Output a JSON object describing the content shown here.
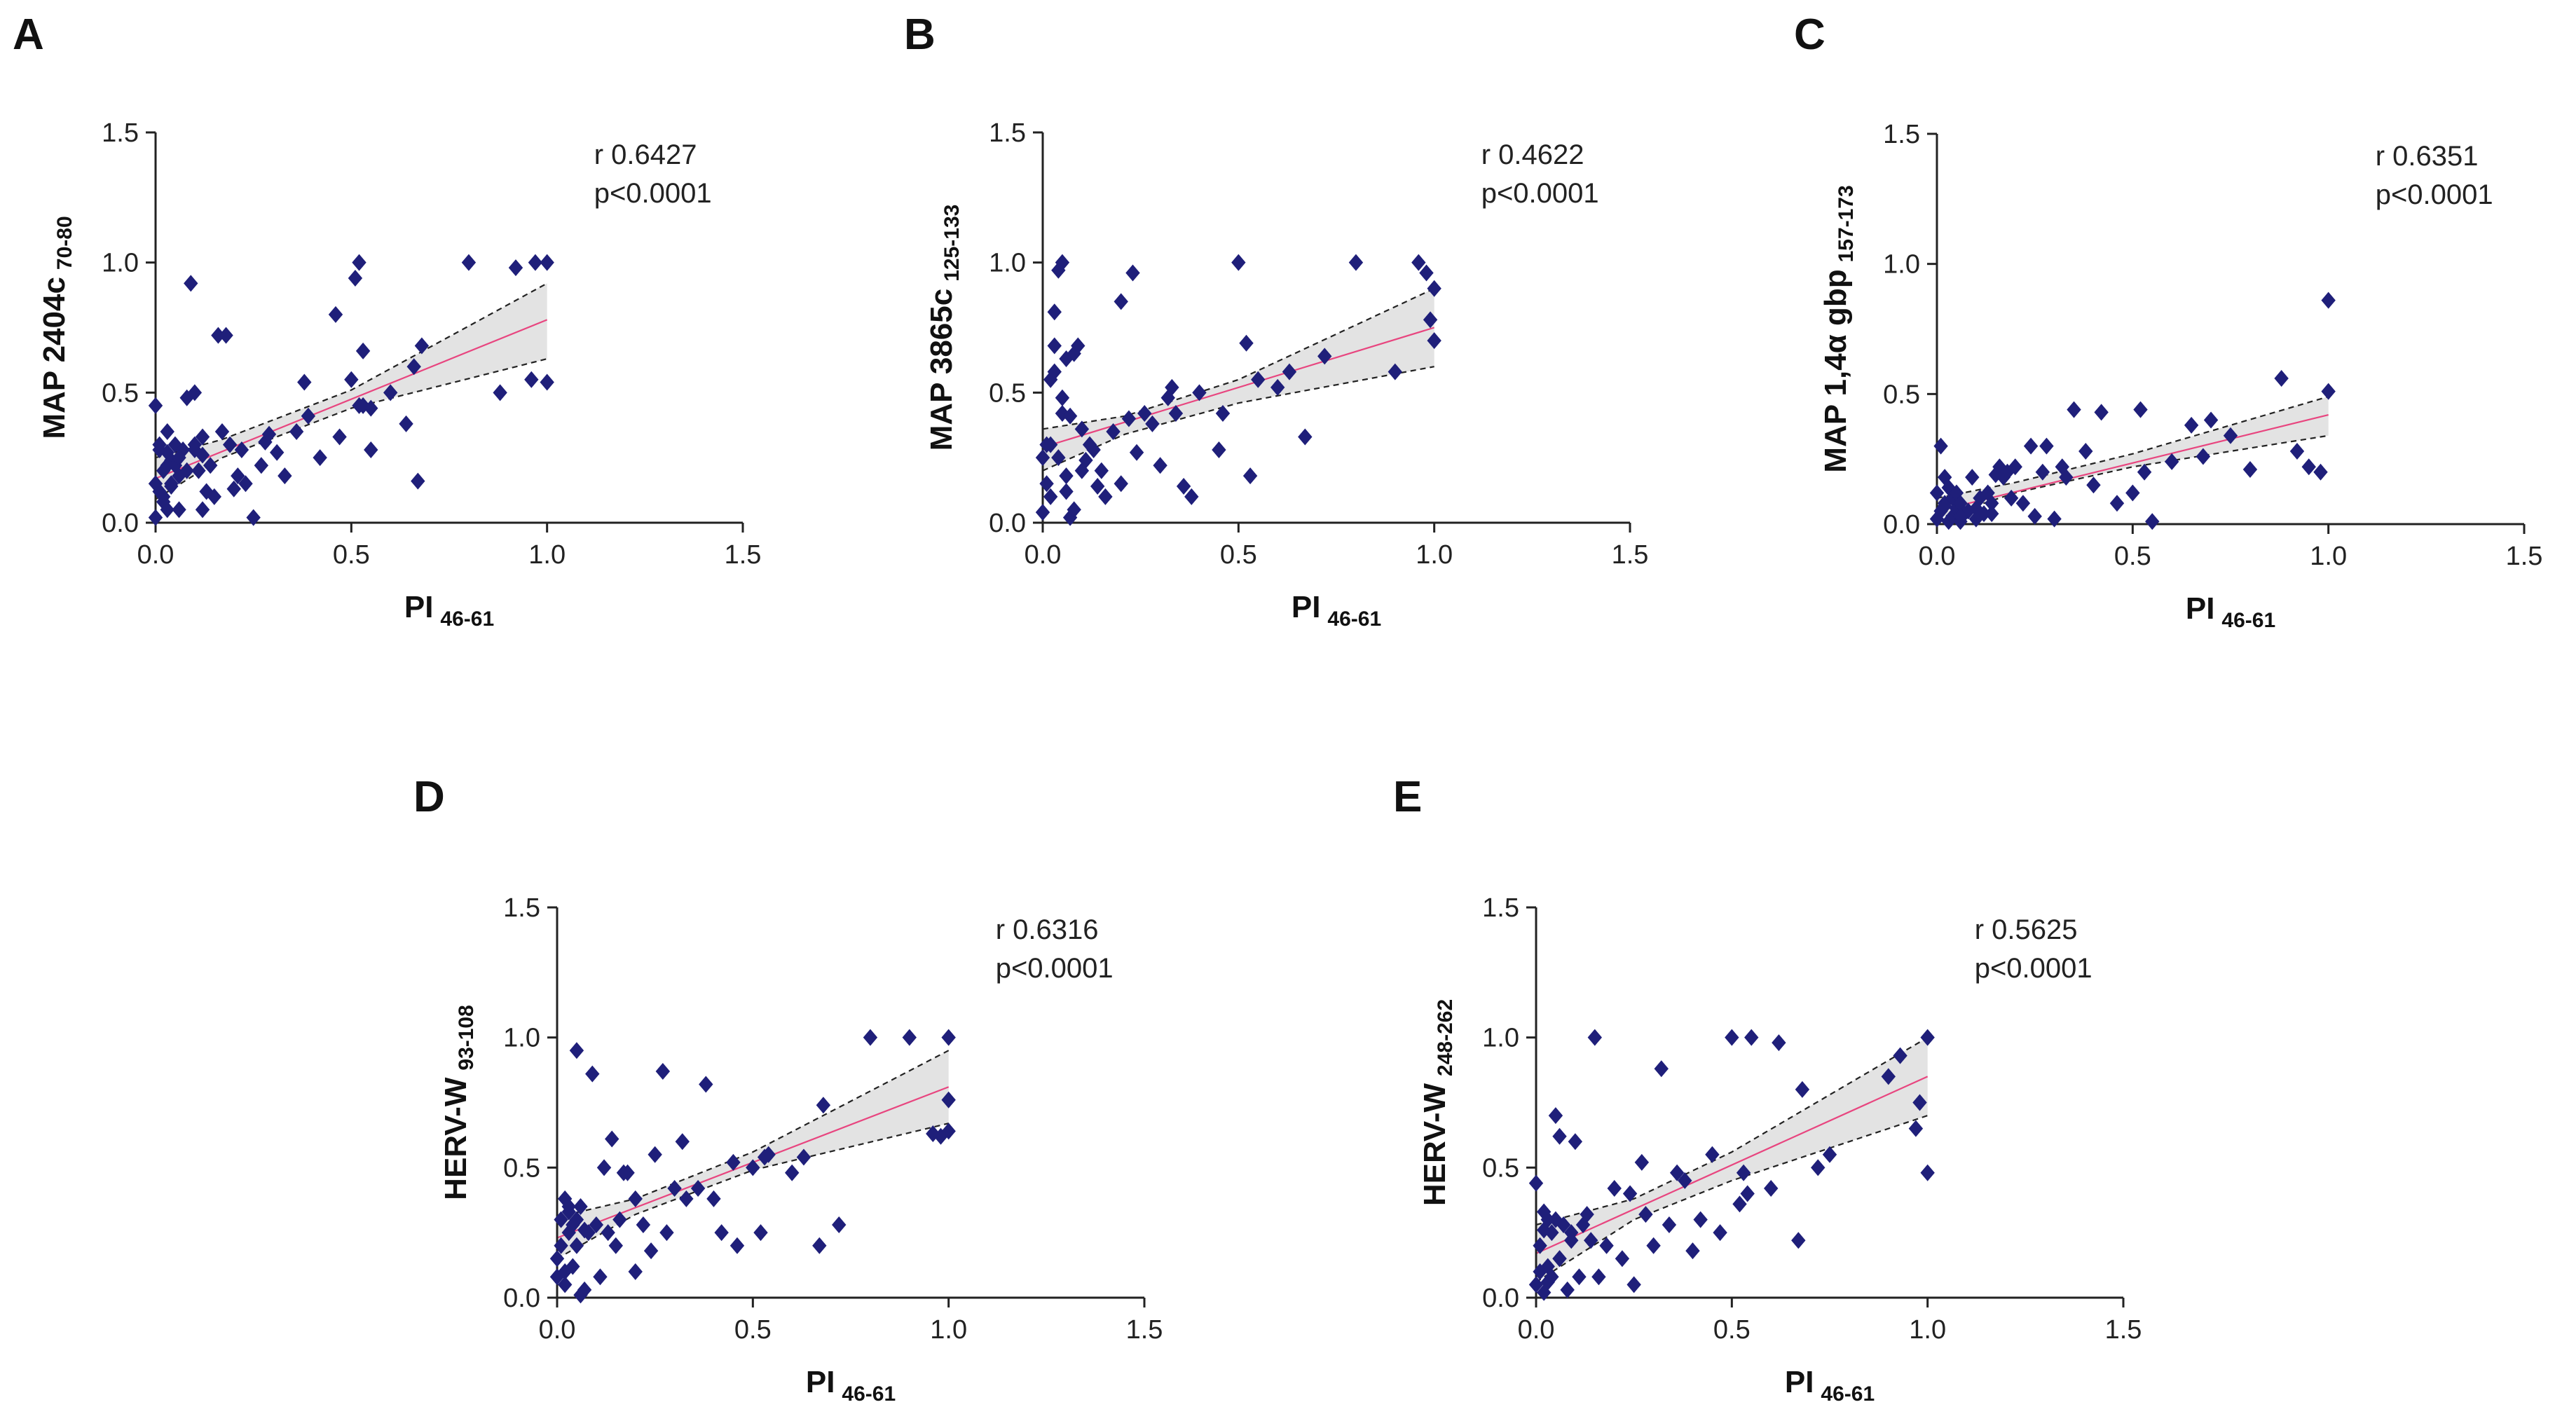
{
  "figure": {
    "colors": {
      "point": "#1f1f7a",
      "fit_line": "#e8457f",
      "ci_band": "#d4d4d4",
      "ci_line": "#222222",
      "axis": "#222222"
    }
  },
  "chart_data": [
    {
      "panel": "A",
      "type": "scatter",
      "xlabel": "PI",
      "xlabel_sub": "46-61",
      "ylabel": "MAP 2404c",
      "ylabel_sub": "70-80",
      "stats": {
        "r": "r 0.6427",
        "p": "p<0.0001"
      },
      "xlim": [
        0,
        1.5
      ],
      "ylim": [
        0,
        1.5
      ],
      "xticks": [
        "0.0",
        "0.5",
        "1.0",
        "1.5"
      ],
      "yticks": [
        "0.0",
        "0.5",
        "1.0",
        "1.5"
      ],
      "fit": {
        "x0": 0.0,
        "y0": 0.17,
        "x1": 1.0,
        "y1": 0.78
      },
      "ci": {
        "lower": [
          [
            0,
            0.09
          ],
          [
            0.17,
            0.25
          ],
          [
            0.5,
            0.44
          ],
          [
            1.0,
            0.63
          ]
        ],
        "upper": [
          [
            0,
            0.25
          ],
          [
            0.17,
            0.32
          ],
          [
            0.5,
            0.51
          ],
          [
            1.0,
            0.92
          ]
        ]
      },
      "x": [
        0.0,
        0.0,
        0.0,
        0.01,
        0.01,
        0.02,
        0.02,
        0.03,
        0.03,
        0.03,
        0.04,
        0.04,
        0.05,
        0.05,
        0.06,
        0.06,
        0.07,
        0.08,
        0.09,
        0.1,
        0.1,
        0.11,
        0.12,
        0.12,
        0.13,
        0.14,
        0.16,
        0.17,
        0.18,
        0.19,
        0.2,
        0.22,
        0.23,
        0.25,
        0.27,
        0.28,
        0.29,
        0.31,
        0.33,
        0.36,
        0.38,
        0.39,
        0.42,
        0.46,
        0.47,
        0.5,
        0.51,
        0.52,
        0.52,
        0.53,
        0.53,
        0.55,
        0.55,
        0.6,
        0.64,
        0.66,
        0.67,
        0.68,
        0.8,
        0.88,
        0.92,
        0.96,
        0.97,
        1.0,
        1.0,
        0.06,
        0.02,
        0.04,
        0.08,
        0.12,
        0.21,
        0.15,
        0.01,
        0.03,
        0.1
      ],
      "y": [
        0.45,
        0.15,
        0.02,
        0.28,
        0.12,
        0.2,
        0.1,
        0.05,
        0.27,
        0.35,
        0.24,
        0.15,
        0.22,
        0.3,
        0.18,
        0.05,
        0.28,
        0.48,
        0.92,
        0.5,
        0.3,
        0.2,
        0.33,
        0.05,
        0.12,
        0.22,
        0.72,
        0.35,
        0.72,
        0.3,
        0.13,
        0.28,
        0.15,
        0.02,
        0.22,
        0.31,
        0.34,
        0.27,
        0.18,
        0.35,
        0.54,
        0.41,
        0.25,
        0.8,
        0.33,
        0.55,
        0.94,
        0.45,
        1.0,
        0.45,
        0.66,
        0.44,
        0.28,
        0.5,
        0.38,
        0.6,
        0.16,
        0.68,
        1.0,
        0.5,
        0.98,
        0.55,
        1.0,
        0.54,
        1.0,
        0.25,
        0.08,
        0.14,
        0.2,
        0.26,
        0.18,
        0.1,
        0.3,
        0.22,
        0.28
      ]
    },
    {
      "panel": "B",
      "type": "scatter",
      "xlabel": "PI",
      "xlabel_sub": "46-61",
      "ylabel": "MAP 3865c",
      "ylabel_sub": "125-133",
      "stats": {
        "r": "r 0.4622",
        "p": "p<0.0001"
      },
      "xlim": [
        0,
        1.5
      ],
      "ylim": [
        0,
        1.5
      ],
      "xticks": [
        "0.0",
        "0.5",
        "1.0",
        "1.5"
      ],
      "yticks": [
        "0.0",
        "0.5",
        "1.0",
        "1.5"
      ],
      "fit": {
        "x0": 0.0,
        "y0": 0.29,
        "x1": 1.0,
        "y1": 0.75
      },
      "ci": {
        "lower": [
          [
            0,
            0.2
          ],
          [
            0.21,
            0.34
          ],
          [
            0.5,
            0.46
          ],
          [
            1.0,
            0.6
          ]
        ],
        "upper": [
          [
            0,
            0.36
          ],
          [
            0.21,
            0.41
          ],
          [
            0.5,
            0.55
          ],
          [
            1.0,
            0.9
          ]
        ]
      },
      "x": [
        0.0,
        0.0,
        0.01,
        0.01,
        0.02,
        0.02,
        0.03,
        0.03,
        0.04,
        0.04,
        0.05,
        0.05,
        0.06,
        0.06,
        0.07,
        0.07,
        0.08,
        0.09,
        0.1,
        0.1,
        0.12,
        0.13,
        0.14,
        0.15,
        0.16,
        0.18,
        0.2,
        0.2,
        0.22,
        0.23,
        0.24,
        0.26,
        0.28,
        0.3,
        0.32,
        0.33,
        0.34,
        0.36,
        0.38,
        0.4,
        0.45,
        0.46,
        0.5,
        0.52,
        0.53,
        0.55,
        0.6,
        0.63,
        0.67,
        0.72,
        0.8,
        0.9,
        0.96,
        0.98,
        0.99,
        1.0,
        1.0,
        0.03,
        0.05,
        0.06,
        0.02,
        0.08,
        0.11
      ],
      "y": [
        0.25,
        0.04,
        0.15,
        0.3,
        0.55,
        0.1,
        0.81,
        0.68,
        0.97,
        0.25,
        1.0,
        0.42,
        0.18,
        0.63,
        0.02,
        0.41,
        0.65,
        0.68,
        0.36,
        0.2,
        0.3,
        0.28,
        0.14,
        0.2,
        0.1,
        0.35,
        0.85,
        0.15,
        0.4,
        0.96,
        0.27,
        0.42,
        0.38,
        0.22,
        0.48,
        0.52,
        0.42,
        0.14,
        0.1,
        0.5,
        0.28,
        0.42,
        1.0,
        0.69,
        0.18,
        0.55,
        0.52,
        0.58,
        0.33,
        0.64,
        1.0,
        0.58,
        1.0,
        0.96,
        0.78,
        0.9,
        0.7,
        0.58,
        0.48,
        0.12,
        0.3,
        0.05,
        0.24
      ]
    },
    {
      "panel": "C",
      "type": "scatter",
      "xlabel": "PI",
      "xlabel_sub": "46-61",
      "ylabel": "MAP 1,4α gbp",
      "ylabel_sub": "157-173",
      "stats": {
        "r": "r 0.6351",
        "p": "p<0.0001"
      },
      "xlim": [
        0,
        1.5
      ],
      "ylim": [
        0,
        1.5
      ],
      "xticks": [
        "0.0",
        "0.5",
        "1.0",
        "1.5"
      ],
      "yticks": [
        "0.0",
        "0.5",
        "1.0",
        "1.5"
      ],
      "fit": {
        "x0": 0.0,
        "y0": 0.05,
        "x1": 1.0,
        "y1": 0.42
      },
      "ci": {
        "lower": [
          [
            0,
            0.02
          ],
          [
            0.2,
            0.12
          ],
          [
            0.5,
            0.22
          ],
          [
            1.0,
            0.34
          ]
        ],
        "upper": [
          [
            0,
            0.1
          ],
          [
            0.2,
            0.16
          ],
          [
            0.5,
            0.27
          ],
          [
            1.0,
            0.49
          ]
        ]
      },
      "x": [
        0.0,
        0.0,
        0.01,
        0.01,
        0.02,
        0.02,
        0.03,
        0.03,
        0.04,
        0.04,
        0.05,
        0.05,
        0.06,
        0.06,
        0.07,
        0.08,
        0.09,
        0.1,
        0.11,
        0.12,
        0.13,
        0.14,
        0.15,
        0.16,
        0.17,
        0.18,
        0.19,
        0.2,
        0.22,
        0.24,
        0.25,
        0.27,
        0.28,
        0.3,
        0.32,
        0.33,
        0.35,
        0.38,
        0.4,
        0.42,
        0.46,
        0.5,
        0.52,
        0.53,
        0.55,
        0.6,
        0.65,
        0.68,
        0.7,
        0.75,
        0.8,
        0.88,
        0.92,
        0.95,
        0.98,
        1.0,
        1.0,
        0.02,
        0.06,
        0.1,
        0.14
      ],
      "y": [
        0.02,
        0.12,
        0.3,
        0.05,
        0.18,
        0.08,
        0.01,
        0.14,
        0.1,
        0.03,
        0.06,
        0.12,
        0.01,
        0.08,
        0.04,
        0.05,
        0.18,
        0.02,
        0.1,
        0.04,
        0.12,
        0.08,
        0.19,
        0.22,
        0.18,
        0.2,
        0.1,
        0.22,
        0.08,
        0.3,
        0.03,
        0.2,
        0.3,
        0.02,
        0.22,
        0.18,
        0.44,
        0.28,
        0.15,
        0.43,
        0.08,
        0.12,
        0.44,
        0.2,
        0.01,
        0.24,
        0.38,
        0.26,
        0.4,
        0.34,
        0.21,
        0.56,
        0.28,
        0.22,
        0.2,
        0.51,
        0.86,
        0.07,
        0.03,
        0.06,
        0.04
      ]
    },
    {
      "panel": "D",
      "type": "scatter",
      "xlabel": "PI",
      "xlabel_sub": "46-61",
      "ylabel": "HERV-W",
      "ylabel_sub": "93-108",
      "stats": {
        "r": "r 0.6316",
        "p": "p<0.0001"
      },
      "xlim": [
        0,
        1.5
      ],
      "ylim": [
        0,
        1.5
      ],
      "xticks": [
        "0.0",
        "0.5",
        "1.0",
        "1.5"
      ],
      "yticks": [
        "0.0",
        "0.5",
        "1.0",
        "1.5"
      ],
      "fit": {
        "x0": 0.0,
        "y0": 0.23,
        "x1": 1.0,
        "y1": 0.81
      },
      "ci": {
        "lower": [
          [
            0,
            0.15
          ],
          [
            0.2,
            0.32
          ],
          [
            0.5,
            0.49
          ],
          [
            1.0,
            0.67
          ]
        ],
        "upper": [
          [
            0,
            0.31
          ],
          [
            0.2,
            0.38
          ],
          [
            0.5,
            0.56
          ],
          [
            1.0,
            0.95
          ]
        ]
      },
      "x": [
        0.0,
        0.0,
        0.01,
        0.01,
        0.02,
        0.02,
        0.03,
        0.03,
        0.04,
        0.04,
        0.05,
        0.05,
        0.06,
        0.06,
        0.07,
        0.08,
        0.09,
        0.1,
        0.12,
        0.13,
        0.14,
        0.15,
        0.16,
        0.18,
        0.2,
        0.2,
        0.22,
        0.24,
        0.25,
        0.27,
        0.28,
        0.3,
        0.32,
        0.33,
        0.36,
        0.38,
        0.4,
        0.42,
        0.45,
        0.46,
        0.5,
        0.52,
        0.53,
        0.54,
        0.6,
        0.63,
        0.67,
        0.68,
        0.72,
        0.8,
        0.9,
        0.96,
        0.98,
        1.0,
        1.0,
        1.0,
        0.02,
        0.05,
        0.07,
        0.11,
        0.17,
        0.03
      ],
      "y": [
        0.15,
        0.08,
        0.3,
        0.2,
        0.38,
        0.05,
        0.25,
        0.33,
        0.12,
        0.28,
        0.95,
        0.2,
        0.35,
        0.01,
        0.26,
        0.25,
        0.86,
        0.28,
        0.5,
        0.25,
        0.61,
        0.2,
        0.3,
        0.48,
        0.38,
        0.1,
        0.28,
        0.18,
        0.55,
        0.87,
        0.25,
        0.42,
        0.6,
        0.38,
        0.42,
        0.82,
        0.38,
        0.25,
        0.52,
        0.2,
        0.5,
        0.25,
        0.54,
        0.55,
        0.48,
        0.54,
        0.2,
        0.74,
        0.28,
        1.0,
        1.0,
        0.63,
        0.62,
        1.0,
        0.76,
        0.64,
        0.1,
        0.3,
        0.03,
        0.08,
        0.48,
        0.35
      ]
    },
    {
      "panel": "E",
      "type": "scatter",
      "xlabel": "PI",
      "xlabel_sub": "46-61",
      "ylabel": "HERV-W",
      "ylabel_sub": "248-262",
      "stats": {
        "r": "r 0.5625",
        "p": "p<0.0001"
      },
      "xlim": [
        0,
        1.5
      ],
      "ylim": [
        0,
        1.5
      ],
      "xticks": [
        "0.0",
        "0.5",
        "1.0",
        "1.5"
      ],
      "yticks": [
        "0.0",
        "0.5",
        "1.0",
        "1.5"
      ],
      "fit": {
        "x0": 0.0,
        "y0": 0.17,
        "x1": 1.0,
        "y1": 0.85
      },
      "ci": {
        "lower": [
          [
            0,
            0.06
          ],
          [
            0.25,
            0.3
          ],
          [
            0.5,
            0.45
          ],
          [
            1.0,
            0.7
          ]
        ],
        "upper": [
          [
            0,
            0.28
          ],
          [
            0.25,
            0.38
          ],
          [
            0.5,
            0.56
          ],
          [
            1.0,
            1.0
          ]
        ]
      },
      "x": [
        0.0,
        0.0,
        0.01,
        0.01,
        0.02,
        0.02,
        0.03,
        0.03,
        0.04,
        0.04,
        0.05,
        0.05,
        0.06,
        0.06,
        0.07,
        0.08,
        0.09,
        0.1,
        0.11,
        0.12,
        0.13,
        0.14,
        0.15,
        0.16,
        0.18,
        0.2,
        0.22,
        0.24,
        0.25,
        0.27,
        0.28,
        0.3,
        0.32,
        0.34,
        0.36,
        0.38,
        0.4,
        0.42,
        0.45,
        0.47,
        0.5,
        0.52,
        0.53,
        0.54,
        0.55,
        0.6,
        0.62,
        0.67,
        0.68,
        0.72,
        0.75,
        0.9,
        0.93,
        0.97,
        0.98,
        1.0,
        1.0,
        0.03,
        0.06,
        0.09,
        0.02
      ],
      "y": [
        0.05,
        0.44,
        0.1,
        0.2,
        0.33,
        0.02,
        0.3,
        0.12,
        0.25,
        0.08,
        0.7,
        0.3,
        0.62,
        0.15,
        0.28,
        0.03,
        0.25,
        0.6,
        0.08,
        0.28,
        0.32,
        0.22,
        1.0,
        0.08,
        0.2,
        0.42,
        0.15,
        0.4,
        0.05,
        0.52,
        0.32,
        0.2,
        0.88,
        0.28,
        0.48,
        0.45,
        0.18,
        0.3,
        0.55,
        0.25,
        1.0,
        0.36,
        0.48,
        0.4,
        1.0,
        0.42,
        0.98,
        0.22,
        0.8,
        0.5,
        0.55,
        0.85,
        0.93,
        0.65,
        0.75,
        1.0,
        0.48,
        0.06,
        0.15,
        0.22,
        0.26
      ]
    }
  ]
}
